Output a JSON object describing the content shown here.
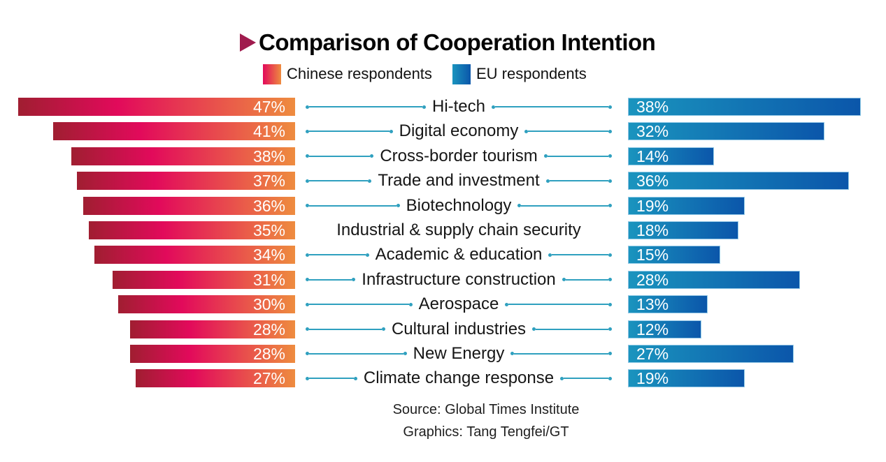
{
  "title": {
    "text": "Comparison of Cooperation Intention"
  },
  "legend": {
    "chinese_label": "Chinese respondents",
    "eu_label": "EU respondents"
  },
  "chart_data": {
    "type": "bar",
    "layout": "bilateral-horizontal",
    "unit": "%",
    "categories": [
      "Hi-tech",
      "Digital economy",
      "Cross-border tourism",
      "Trade and investment",
      "Biotechnology",
      "Industrial & supply chain security",
      "Academic & education",
      "Infrastructure construction",
      "Aerospace",
      "Cultural industries",
      "New Energy",
      "Climate change response"
    ],
    "series": [
      {
        "name": "Chinese respondents",
        "side": "left",
        "values": [
          47,
          41,
          38,
          37,
          36,
          35,
          34,
          31,
          30,
          28,
          28,
          27
        ],
        "gradient": [
          "#A01E31",
          "#E20A5B",
          "#EE8C3F"
        ]
      },
      {
        "name": "EU respondents",
        "side": "right",
        "values": [
          38,
          32,
          14,
          36,
          19,
          18,
          15,
          28,
          13,
          12,
          27,
          19
        ],
        "gradient": [
          "#1A94BE",
          "#0B56AA"
        ]
      }
    ],
    "connectors": [
      true,
      true,
      true,
      true,
      true,
      false,
      true,
      true,
      true,
      true,
      true,
      true
    ],
    "connector_color": "#2FA0BF",
    "title_arrow_color": "#A01C4E",
    "value_label_color": "#FFFFFF"
  },
  "source": {
    "line1": "Source: Global Times Institute",
    "line2": "Graphics: Tang Tengfei/GT"
  }
}
